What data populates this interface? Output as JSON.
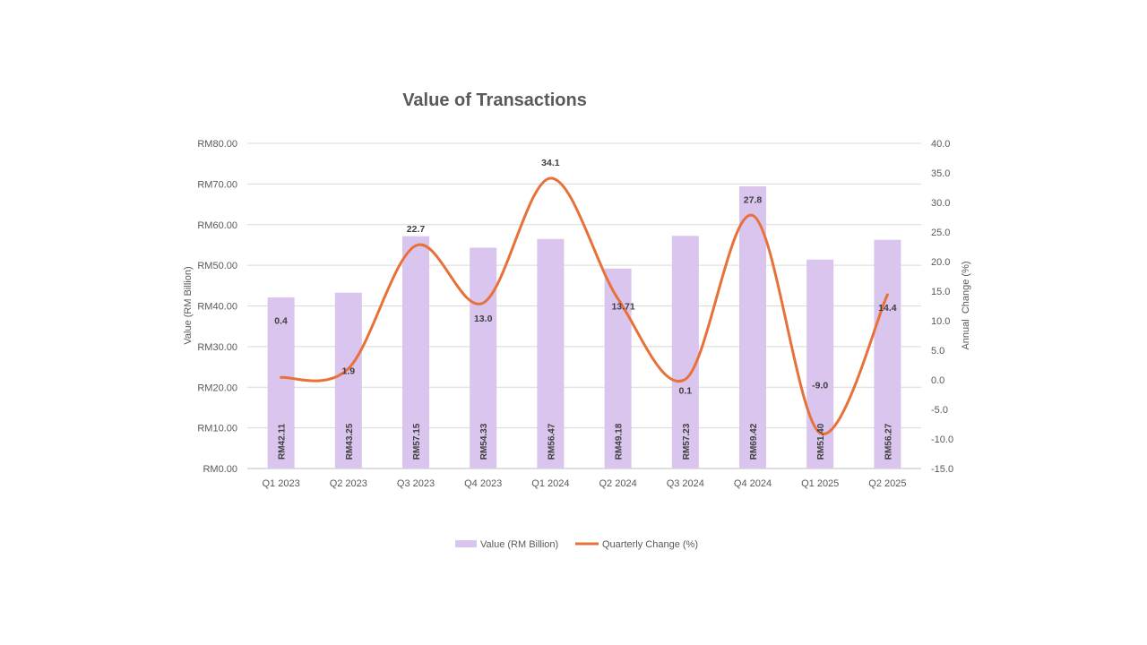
{
  "chart_data": {
    "type": "bar",
    "title": "Value of Transactions",
    "categories": [
      "Q1 2023",
      "Q2 2023",
      "Q3 2023",
      "Q4 2023",
      "Q1 2024",
      "Q2 2024",
      "Q3 2024",
      "Q4 2024",
      "Q1 2025",
      "Q2 2025"
    ],
    "series": [
      {
        "name": "Value (RM Billion)",
        "type": "bar",
        "axis": "left",
        "color": "#d9c5ed",
        "values": [
          42.11,
          43.25,
          57.15,
          54.33,
          56.47,
          49.18,
          57.23,
          69.42,
          51.4,
          56.27
        ],
        "labels": [
          "RM42.11",
          "RM43.25",
          "RM57.15",
          "RM54.33",
          "RM56.47",
          "RM49.18",
          "RM57.23",
          "RM69.42",
          "RM51.40",
          "RM56.27"
        ]
      },
      {
        "name": "Quarterly Change (%)",
        "type": "line",
        "smooth": true,
        "axis": "right",
        "color": "#e8713a",
        "values": [
          0.4,
          1.9,
          22.7,
          13.0,
          34.1,
          13.71,
          0.1,
          27.8,
          -9.0,
          14.4
        ],
        "labels": [
          "0.4",
          "1.9",
          "22.7",
          "13.0",
          "34.1",
          "13.71",
          "0.1",
          "27.8",
          "-9.0",
          "14.4"
        ]
      }
    ],
    "ylabel": "Value (RM Billion)",
    "y2label": "Annual  Change (%)",
    "ylim": [
      0,
      80
    ],
    "y2lim": [
      -15,
      40
    ],
    "yticks": [
      "RM0.00",
      "RM10.00",
      "RM20.00",
      "RM30.00",
      "RM40.00",
      "RM50.00",
      "RM60.00",
      "RM70.00",
      "RM80.00"
    ],
    "y2ticks": [
      "-15.0",
      "-10.0",
      "-5.0",
      "0.0",
      "5.0",
      "10.0",
      "15.0",
      "20.0",
      "25.0",
      "30.0",
      "35.0",
      "40.0"
    ],
    "grid": true,
    "legend_position": "bottom"
  }
}
